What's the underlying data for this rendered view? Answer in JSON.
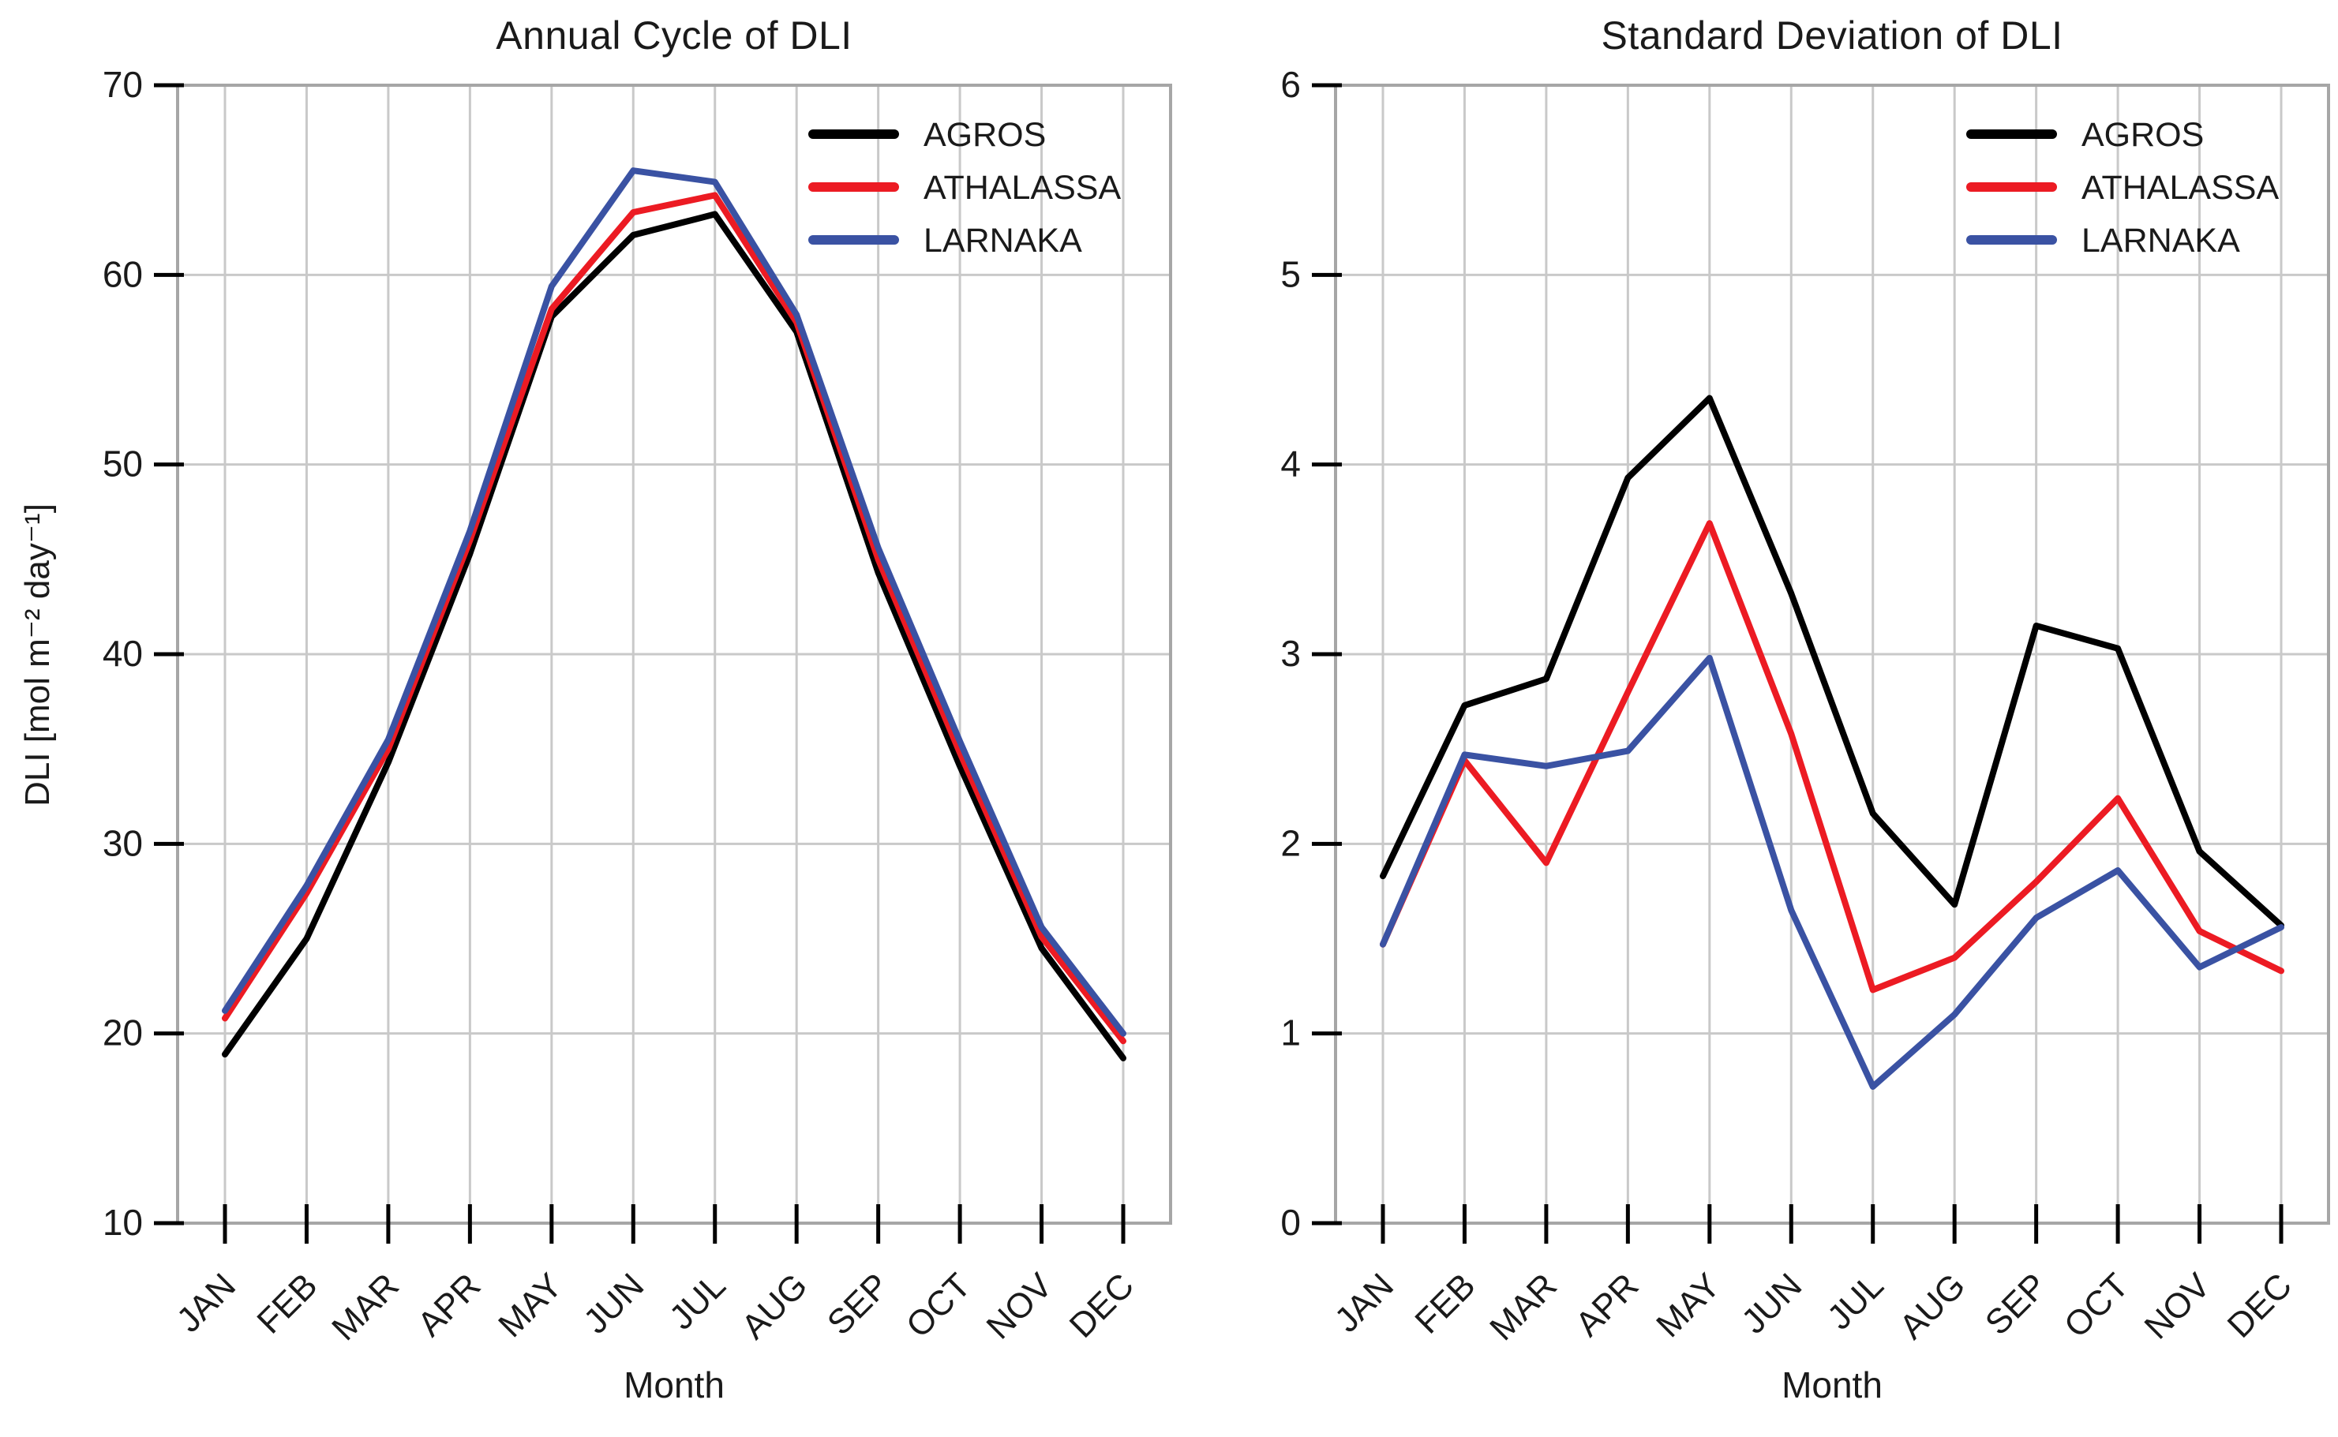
{
  "figure": {
    "background": "#ffffff"
  },
  "months": [
    "JAN",
    "FEB",
    "MAR",
    "APR",
    "MAY",
    "JUN",
    "JUL",
    "AUG",
    "SEP",
    "OCT",
    "NOV",
    "DEC"
  ],
  "legend": {
    "entries": [
      {
        "label": "AGROS",
        "color": "#000000"
      },
      {
        "label": "ATHALASSA",
        "color": "#ec1b23"
      },
      {
        "label": "LARNAKA",
        "color": "#3a52a3"
      }
    ]
  },
  "style": {
    "grid_color": "#c9c9c9",
    "spine_color": "#a6a6a6",
    "tick_color": "#000000",
    "text_color": "#1a1a1a"
  },
  "chart_data": [
    {
      "type": "line",
      "title": "Annual Cycle of DLI",
      "xlabel": "Month",
      "ylabel": "DLI [mol m⁻² day⁻¹]",
      "ylim": [
        10,
        70
      ],
      "yticks": [
        10,
        20,
        30,
        40,
        50,
        60,
        70
      ],
      "grid": true,
      "legend_position": "upper right",
      "categories": [
        "JAN",
        "FEB",
        "MAR",
        "APR",
        "MAY",
        "JUN",
        "JUL",
        "AUG",
        "SEP",
        "OCT",
        "NOV",
        "DEC"
      ],
      "series": [
        {
          "name": "AGROS",
          "color": "#000000",
          "values": [
            18.9,
            25.0,
            34.3,
            45.3,
            57.8,
            62.1,
            63.2,
            57.0,
            44.3,
            34.1,
            24.5,
            18.7
          ]
        },
        {
          "name": "ATHALASSA",
          "color": "#ec1b23",
          "values": [
            20.8,
            27.4,
            35.0,
            46.0,
            58.2,
            63.3,
            64.2,
            57.5,
            45.0,
            34.8,
            25.1,
            19.6
          ]
        },
        {
          "name": "LARNAKA",
          "color": "#3a52a3",
          "values": [
            21.2,
            27.8,
            35.5,
            46.5,
            59.4,
            65.5,
            64.9,
            57.9,
            45.6,
            35.4,
            25.6,
            20.0
          ]
        }
      ]
    },
    {
      "type": "line",
      "title": "Standard Deviation of DLI",
      "xlabel": "Month",
      "ylabel": "",
      "ylim": [
        0,
        6
      ],
      "yticks": [
        0,
        1,
        2,
        3,
        4,
        5,
        6
      ],
      "grid": true,
      "legend_position": "upper right",
      "categories": [
        "JAN",
        "FEB",
        "MAR",
        "APR",
        "MAY",
        "JUN",
        "JUL",
        "AUG",
        "SEP",
        "OCT",
        "NOV",
        "DEC"
      ],
      "series": [
        {
          "name": "AGROS",
          "color": "#000000",
          "values": [
            1.83,
            2.73,
            2.87,
            3.93,
            4.35,
            3.32,
            2.16,
            1.68,
            3.15,
            3.03,
            1.96,
            1.57
          ]
        },
        {
          "name": "ATHALASSA",
          "color": "#ec1b23",
          "values": [
            1.47,
            2.44,
            1.9,
            2.8,
            3.69,
            2.58,
            1.23,
            1.4,
            1.8,
            2.24,
            1.54,
            1.33
          ]
        },
        {
          "name": "LARNAKA",
          "color": "#3a52a3",
          "values": [
            1.47,
            2.47,
            2.41,
            2.49,
            2.98,
            1.65,
            0.72,
            1.1,
            1.61,
            1.86,
            1.35,
            1.56
          ]
        }
      ]
    }
  ]
}
